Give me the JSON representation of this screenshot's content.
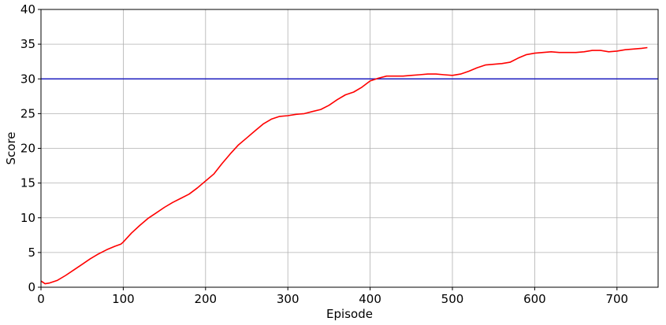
{
  "chart_data": {
    "type": "line",
    "title": "",
    "xlabel": "Episode",
    "ylabel": "Score",
    "xlim": [
      0,
      750
    ],
    "ylim": [
      0,
      40
    ],
    "xticks": [
      0,
      100,
      200,
      300,
      400,
      500,
      600,
      700
    ],
    "yticks": [
      0,
      5,
      10,
      15,
      20,
      25,
      30,
      35,
      40
    ],
    "grid": true,
    "legend": "none",
    "series": [
      {
        "color": "#ff0000",
        "x": [
          0,
          5,
          10,
          20,
          30,
          40,
          50,
          60,
          70,
          80,
          90,
          97,
          100,
          110,
          120,
          130,
          140,
          150,
          160,
          170,
          180,
          190,
          200,
          210,
          220,
          230,
          240,
          250,
          260,
          270,
          280,
          290,
          300,
          310,
          320,
          330,
          340,
          350,
          360,
          370,
          380,
          390,
          400,
          410,
          420,
          430,
          440,
          450,
          460,
          470,
          480,
          490,
          500,
          510,
          520,
          530,
          540,
          550,
          560,
          570,
          580,
          590,
          600,
          610,
          620,
          630,
          640,
          650,
          660,
          670,
          680,
          690,
          700,
          710,
          720,
          730,
          737
        ],
        "values": [
          0.9,
          0.5,
          0.6,
          1.0,
          1.7,
          2.5,
          3.3,
          4.1,
          4.8,
          5.4,
          5.9,
          6.2,
          6.5,
          7.8,
          8.9,
          9.9,
          10.7,
          11.5,
          12.2,
          12.8,
          13.4,
          14.3,
          15.3,
          16.3,
          17.8,
          19.2,
          20.5,
          21.5,
          22.5,
          23.5,
          24.2,
          24.6,
          24.7,
          24.9,
          25.0,
          25.3,
          25.6,
          26.2,
          27.0,
          27.7,
          28.1,
          28.8,
          29.7,
          30.1,
          30.4,
          30.4,
          30.4,
          30.5,
          30.6,
          30.7,
          30.7,
          30.6,
          30.5,
          30.7,
          31.1,
          31.6,
          32.0,
          32.1,
          32.2,
          32.4,
          33.0,
          33.5,
          33.7,
          33.8,
          33.9,
          33.8,
          33.8,
          33.8,
          33.9,
          34.1,
          34.1,
          33.9,
          34.0,
          34.2,
          34.3,
          34.4,
          34.5
        ]
      }
    ],
    "hlines": [
      {
        "y": 30,
        "color": "#1f1fbf"
      }
    ]
  }
}
